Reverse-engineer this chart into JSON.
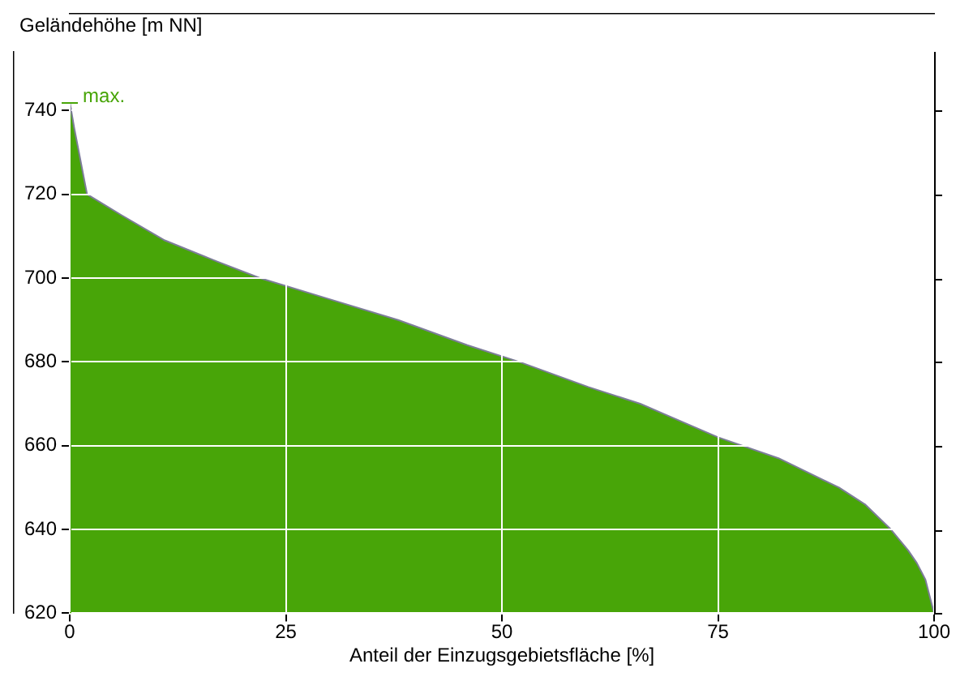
{
  "chart_data": {
    "type": "area",
    "xlabel": "Anteil der Einzugsgebietsfläche [%]",
    "ylabel": "Geländehöhe [m NN]",
    "x": [
      0,
      0.5,
      2,
      6,
      11,
      17,
      22,
      30,
      38,
      46,
      52,
      60,
      66,
      75,
      82,
      89,
      92,
      95,
      97,
      98,
      99,
      100
    ],
    "series": [
      {
        "color": "#48a508",
        "values": [
          742,
          736,
          720,
          715,
          709,
          704,
          700,
          695,
          690,
          684,
          680,
          674,
          670,
          662,
          657,
          650,
          646,
          640,
          635,
          632,
          628,
          620
        ]
      }
    ],
    "xlim": [
      0,
      100
    ],
    "xticks": [
      0,
      25,
      50,
      75,
      100
    ],
    "ylim": [
      620,
      754
    ],
    "yticks": [
      620,
      640,
      660,
      680,
      700,
      720,
      740
    ],
    "annotations": [
      {
        "text": "max.",
        "x": 0,
        "y": 742
      }
    ],
    "grid": true,
    "legend": false
  }
}
